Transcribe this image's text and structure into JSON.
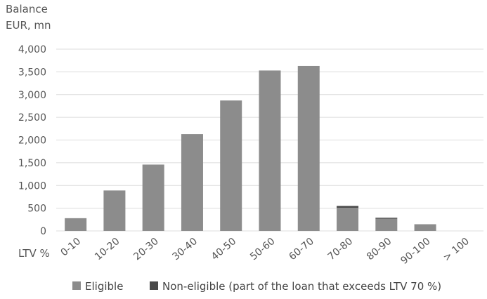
{
  "chart_data": {
    "type": "bar",
    "stacked": true,
    "ylabel_lines": [
      "Balance",
      "EUR, mn"
    ],
    "xlabel": "LTV %",
    "categories": [
      "0-10",
      "10-20",
      "20-30",
      "30-40",
      "40-50",
      "50-60",
      "60-70",
      "70-80",
      "80-90",
      "90-100",
      "> 100"
    ],
    "ylim": [
      0,
      4000
    ],
    "yticks": [
      0,
      500,
      1000,
      1500,
      2000,
      2500,
      3000,
      3500,
      4000
    ],
    "ytick_labels": [
      "0",
      "500",
      "1,000",
      "1,500",
      "2,000",
      "2,500",
      "3,000",
      "3,500",
      "4,000"
    ],
    "grid": true,
    "legend_position": "bottom",
    "series": [
      {
        "name": "Eligible",
        "color": "#8c8c8c",
        "values": [
          280,
          890,
          1460,
          2130,
          2870,
          3530,
          3630,
          510,
          270,
          140,
          0
        ]
      },
      {
        "name": "Non-eligible (part of the loan that exceeds LTV 70 %)",
        "color": "#4a4a4a",
        "values": [
          0,
          0,
          0,
          0,
          0,
          0,
          0,
          40,
          20,
          5,
          0
        ]
      }
    ]
  }
}
